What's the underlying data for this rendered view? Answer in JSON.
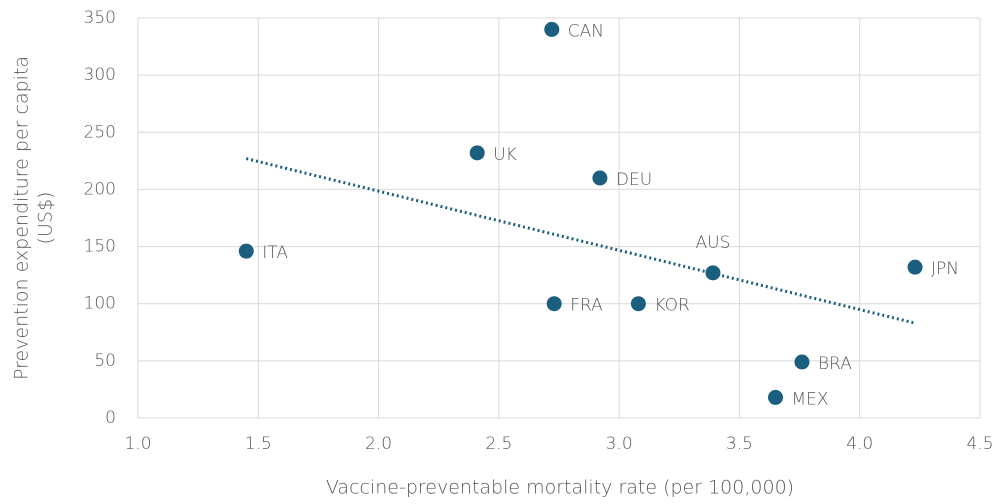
{
  "chart_data": {
    "type": "scatter",
    "xlabel": "Vaccine-preventable mortality rate (per 100,000)",
    "ylabel": [
      "Prevention expenditure per capita",
      "(US$)"
    ],
    "series": [
      {
        "color": "#1b5e7e",
        "labels": [
          "CAN",
          "UK",
          "DEU",
          "ITA",
          "AUS",
          "JPN",
          "FRA",
          "KOR",
          "BRA",
          "MEX"
        ],
        "x": [
          2.72,
          2.41,
          2.92,
          1.45,
          3.39,
          4.23,
          2.73,
          3.08,
          3.76,
          3.65
        ],
        "values": [
          340,
          232,
          210,
          146,
          127,
          132,
          100,
          100,
          49,
          18
        ]
      }
    ],
    "trendline": {
      "color": "#1b5e7e",
      "x": [
        1.45,
        4.23
      ],
      "values": [
        227,
        83
      ]
    },
    "xlim": [
      1.0,
      4.5
    ],
    "xticks": [
      {
        "value": 1.0,
        "label": "1.0"
      },
      1.5,
      {
        "value": 2.0,
        "label": "2.0"
      },
      2.5,
      {
        "value": 3.0,
        "label": "3.0"
      },
      3.5,
      {
        "value": 4.0,
        "label": "4.0"
      },
      4.5
    ],
    "ylim": [
      0,
      350
    ],
    "yticks": [
      0,
      50,
      100,
      150,
      200,
      250,
      300,
      350
    ],
    "grid": true
  }
}
